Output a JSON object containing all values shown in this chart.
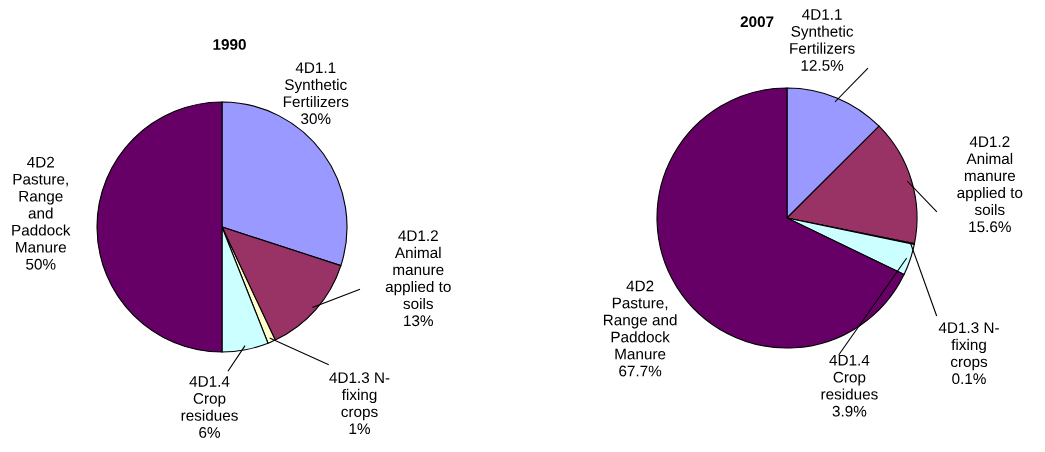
{
  "chart_data": [
    {
      "type": "pie",
      "title": "1990",
      "categories": [
        "4D1.1\nSynthetic\nFertilizers",
        "4D1.2\nAnimal\nmanure\napplied to\nsoils",
        "4D1.3 N-\nfixing\ncrops",
        "4D1.4\nCrop\nresidues",
        "4D2\nPasture,\nRange\nand\nPaddock\nManure"
      ],
      "values": [
        30,
        13,
        1,
        6,
        50
      ],
      "value_labels": [
        "30%",
        "13%",
        "1%",
        "6%",
        "50%"
      ],
      "colors": [
        "#9999ff",
        "#993366",
        "#ffffcc",
        "#ccffff",
        "#660066"
      ]
    },
    {
      "type": "pie",
      "title": "2007",
      "categories": [
        "4D1.1\nSynthetic\nFertilizers",
        "4D1.2\nAnimal\nmanure\napplied to\nsoils",
        "4D1.3 N-\nfixing\ncrops",
        "4D1.4\nCrop\nresidues",
        "4D2\nPasture,\nRange and\nPaddock\nManure"
      ],
      "values": [
        12.5,
        15.6,
        0.1,
        3.9,
        67.7
      ],
      "value_labels": [
        "12.5%",
        "15.6%",
        "0.1%",
        "3.9%",
        "67.7%"
      ],
      "colors": [
        "#9999ff",
        "#993366",
        "#ffffcc",
        "#ccffff",
        "#660066"
      ]
    }
  ]
}
